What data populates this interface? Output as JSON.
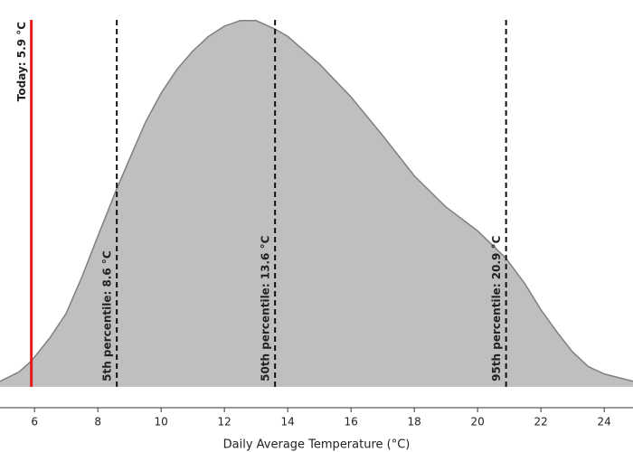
{
  "chart_data": {
    "type": "area",
    "xlabel": "Daily Average Temperature (°C)",
    "x": [
      4.91,
      5.5,
      5.9,
      6.5,
      7,
      7.5,
      8,
      8.6,
      9,
      9.5,
      10,
      10.5,
      11,
      11.5,
      12,
      12.5,
      13,
      13.6,
      14,
      15,
      16,
      17,
      18,
      19,
      20,
      20.9,
      21.5,
      22,
      22.5,
      23,
      23.5,
      24,
      24.91
    ],
    "series": [
      {
        "values": [
          0.015,
          0.04,
          0.07,
          0.135,
          0.2,
          0.3,
          0.41,
          0.54,
          0.62,
          0.72,
          0.8,
          0.865,
          0.915,
          0.955,
          0.983,
          0.998,
          0.998,
          0.975,
          0.955,
          0.88,
          0.79,
          0.685,
          0.575,
          0.49,
          0.425,
          0.35,
          0.28,
          0.21,
          0.15,
          0.095,
          0.055,
          0.035,
          0.015
        ],
        "color": "#bfbfbf",
        "line_color": "#7f7f7f"
      }
    ],
    "vlines": [
      {
        "value": 5.9,
        "label": "Today: 5.9 °C",
        "color": "#e31a1c",
        "style": "solid",
        "label_position": "top"
      },
      {
        "value": 8.6,
        "label": "5th percentile: 8.6 °C",
        "color": "#111111",
        "style": "dashed",
        "label_position": "bottom"
      },
      {
        "value": 13.6,
        "label": "50th percentile: 13.6 °C",
        "color": "#111111",
        "style": "dashed",
        "label_position": "bottom"
      },
      {
        "value": 20.9,
        "label": "95th percentile: 20.9 °C",
        "color": "#111111",
        "style": "dashed",
        "label_position": "bottom"
      }
    ],
    "xlim": [
      4.91,
      24.91
    ],
    "ylim": [
      -0.057,
      1
    ],
    "xticks": [
      6,
      8,
      10,
      12,
      14,
      16,
      18,
      20,
      22,
      24
    ]
  }
}
